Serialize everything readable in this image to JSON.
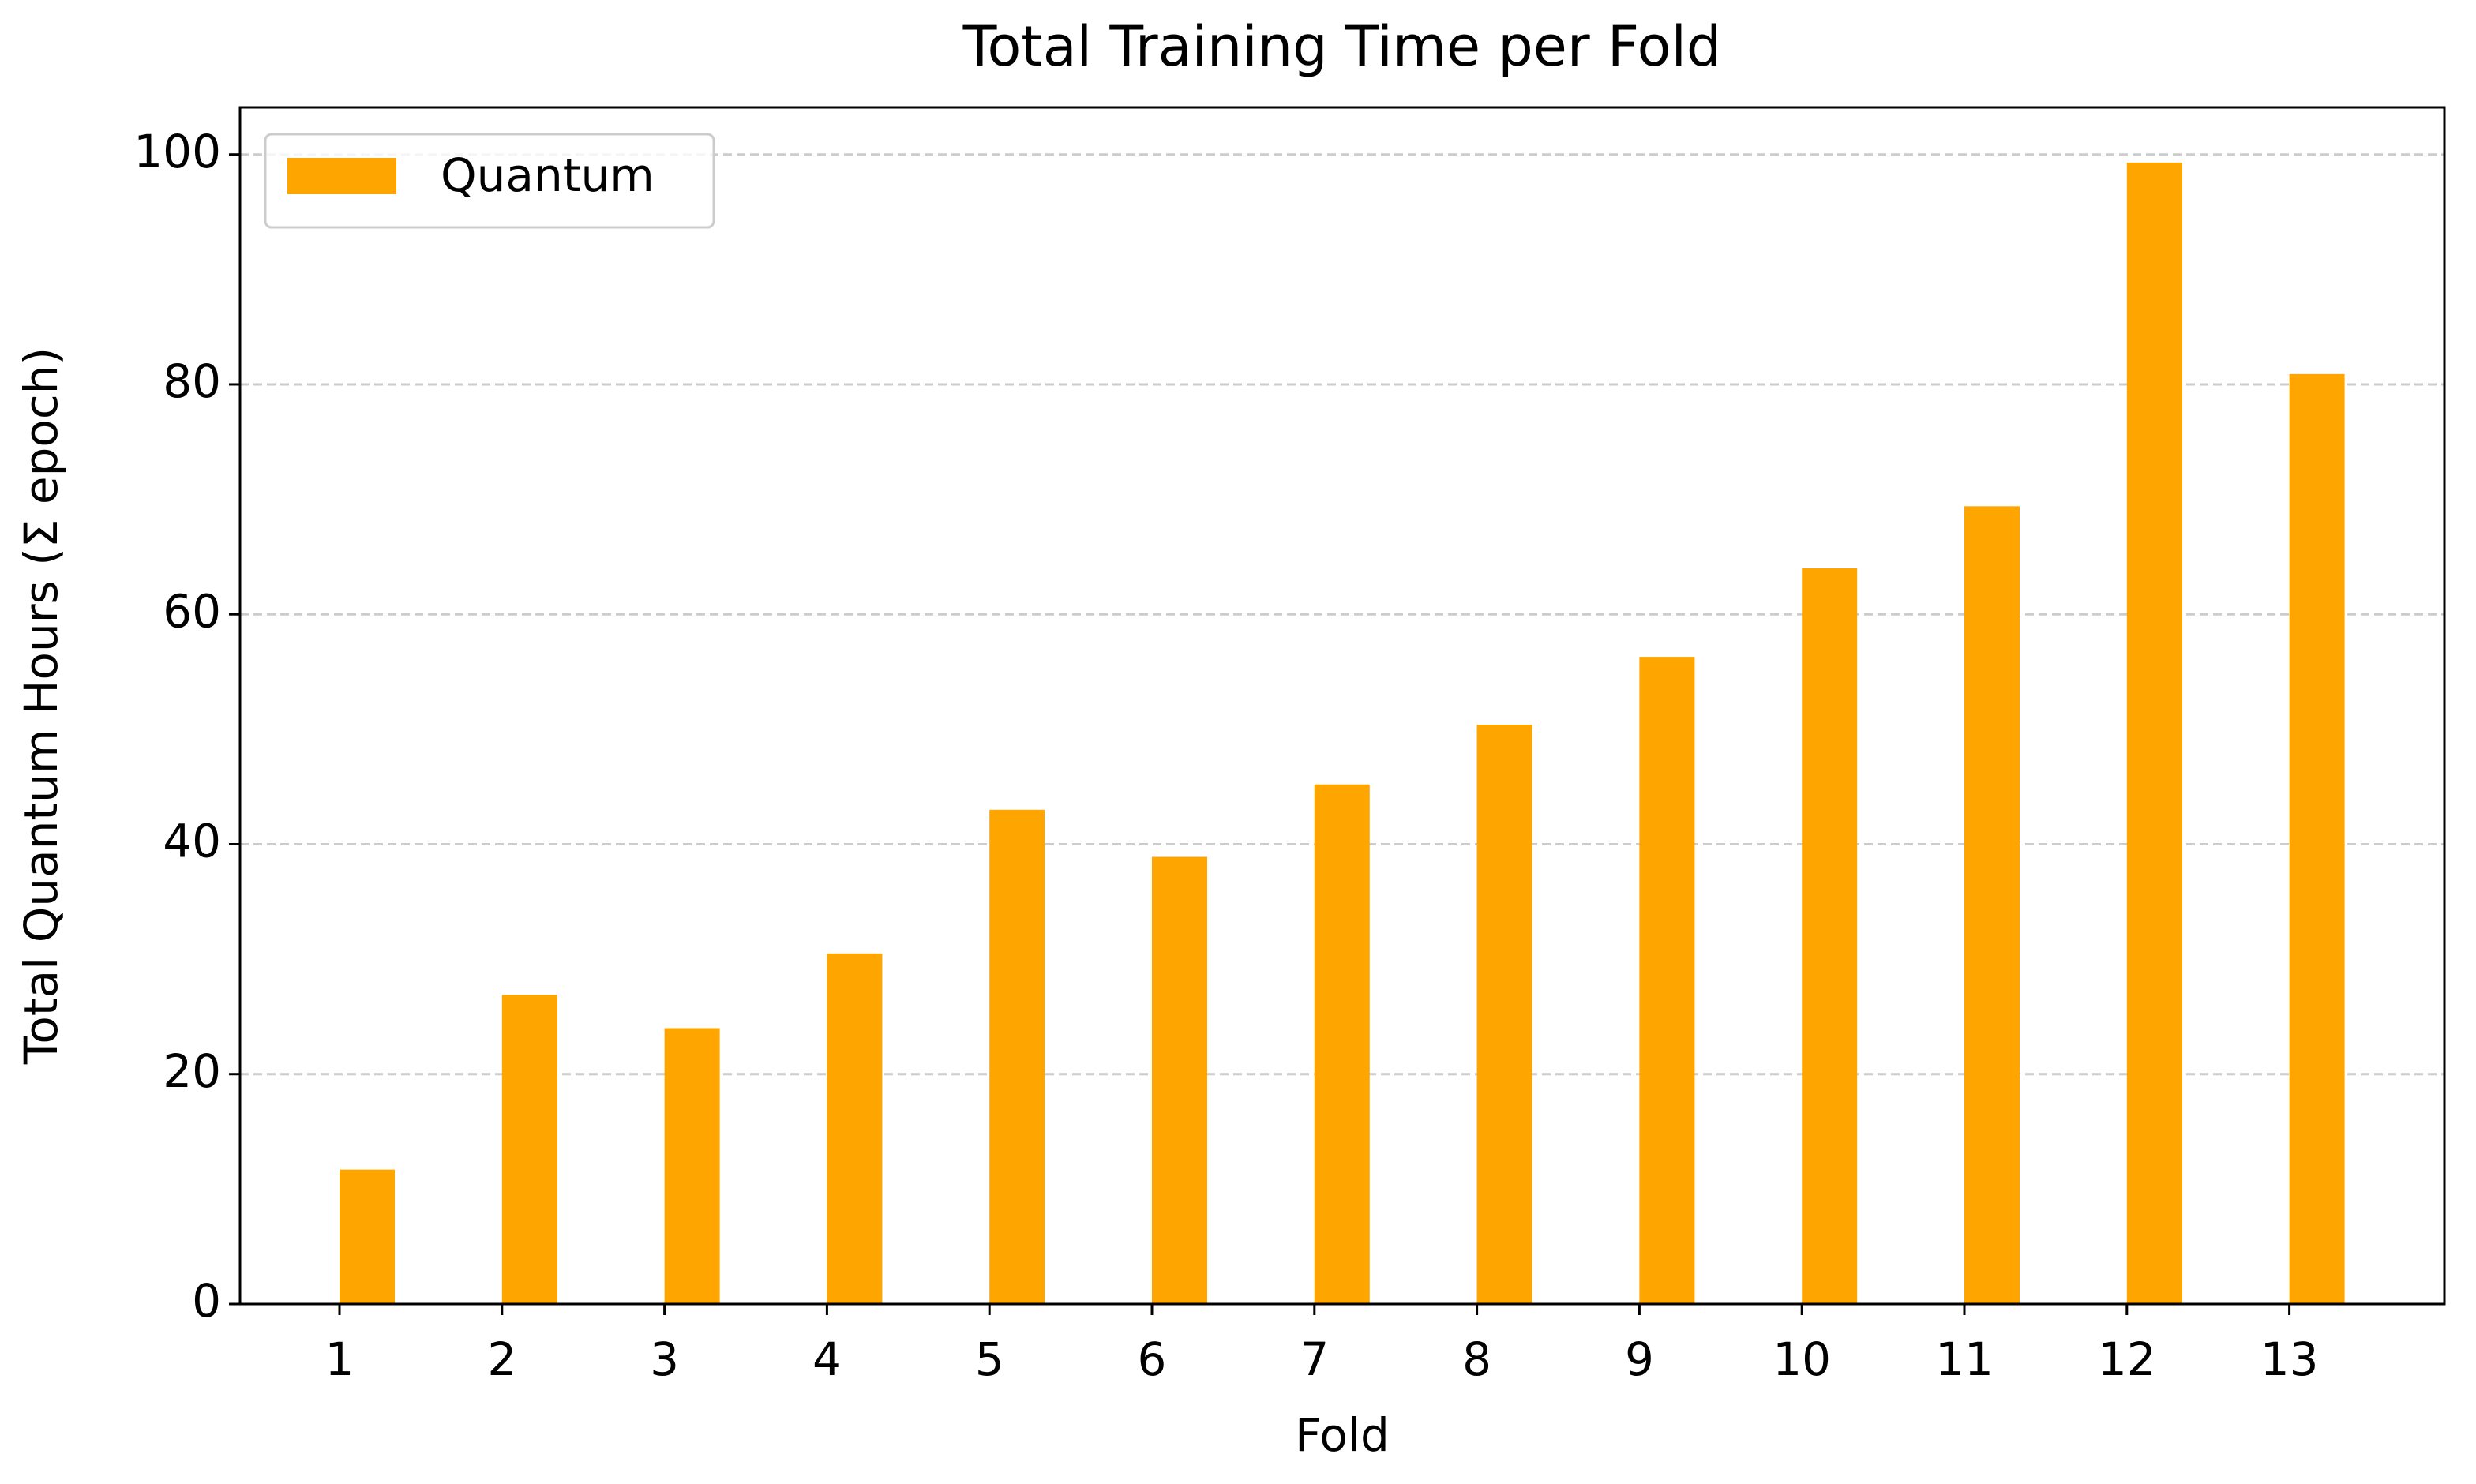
{
  "chart_data": {
    "type": "bar",
    "title": "Total Training Time per Fold",
    "x_label": "Fold",
    "y_label": "Total Quantum Hours (Σ epoch)",
    "categories": [
      "1",
      "2",
      "3",
      "4",
      "5",
      "6",
      "7",
      "8",
      "9",
      "10",
      "11",
      "12",
      "13"
    ],
    "series": [
      {
        "name": "Quantum",
        "color": "#ffa500",
        "values": [
          11.7,
          26.9,
          24.0,
          30.5,
          43.0,
          38.9,
          45.2,
          50.4,
          56.3,
          64.0,
          69.4,
          99.3,
          80.9
        ]
      }
    ],
    "ylim": [
      0,
      104.1
    ],
    "yticks": [
      0,
      20,
      40,
      60,
      80,
      100
    ],
    "grid": true,
    "legend": "upper left"
  }
}
